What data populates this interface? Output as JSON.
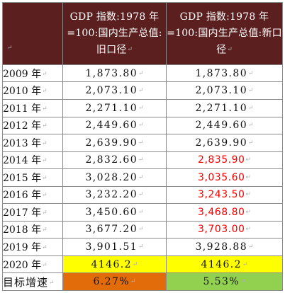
{
  "header": {
    "corner": "",
    "old": "GDP 指数:1978 年=100:国内生产总值:旧口径",
    "new": "GDP 指数:1978 年=100:国内生产总值:新口径"
  },
  "return_mark": "↵",
  "rows": [
    {
      "year": "2009 年",
      "old": "1,873.80",
      "new": "1,873.80"
    },
    {
      "year": "2010 年",
      "old": "2,073.10",
      "new": "2,073.10"
    },
    {
      "year": "2011 年",
      "old": "2,271.10",
      "new": "2,271.10"
    },
    {
      "year": "2012 年",
      "old": "2,449.60",
      "new": "2,449.60"
    },
    {
      "year": "2013 年",
      "old": "2,639.90",
      "new": "2,639.90"
    },
    {
      "year": "2014 年",
      "old": "2,832.60",
      "new": "2,835.90"
    },
    {
      "year": "2015 年",
      "old": "3,028.20",
      "new": "3,035.60"
    },
    {
      "year": "2016 年",
      "old": "3,232.20",
      "new": "3,243.50"
    },
    {
      "year": "2017 年",
      "old": "3,450.60",
      "new": "3,468.80"
    },
    {
      "year": "2018 年",
      "old": "3,677.20",
      "new": "3,703.00"
    },
    {
      "year": "2019 年",
      "old": "3,901.51",
      "new": "3,928.88"
    },
    {
      "year": "2020 年",
      "old": "4146.2",
      "new": "4146.2"
    }
  ],
  "target": {
    "label": "目标增速",
    "old": "6.27%",
    "new": "5.53%"
  },
  "colors": {
    "header_bg": "#5b1f1f",
    "revised_value": "#ff0000",
    "row_2020": "#ffff00",
    "target_old": "#e36c0a",
    "target_new": "#92d050"
  }
}
